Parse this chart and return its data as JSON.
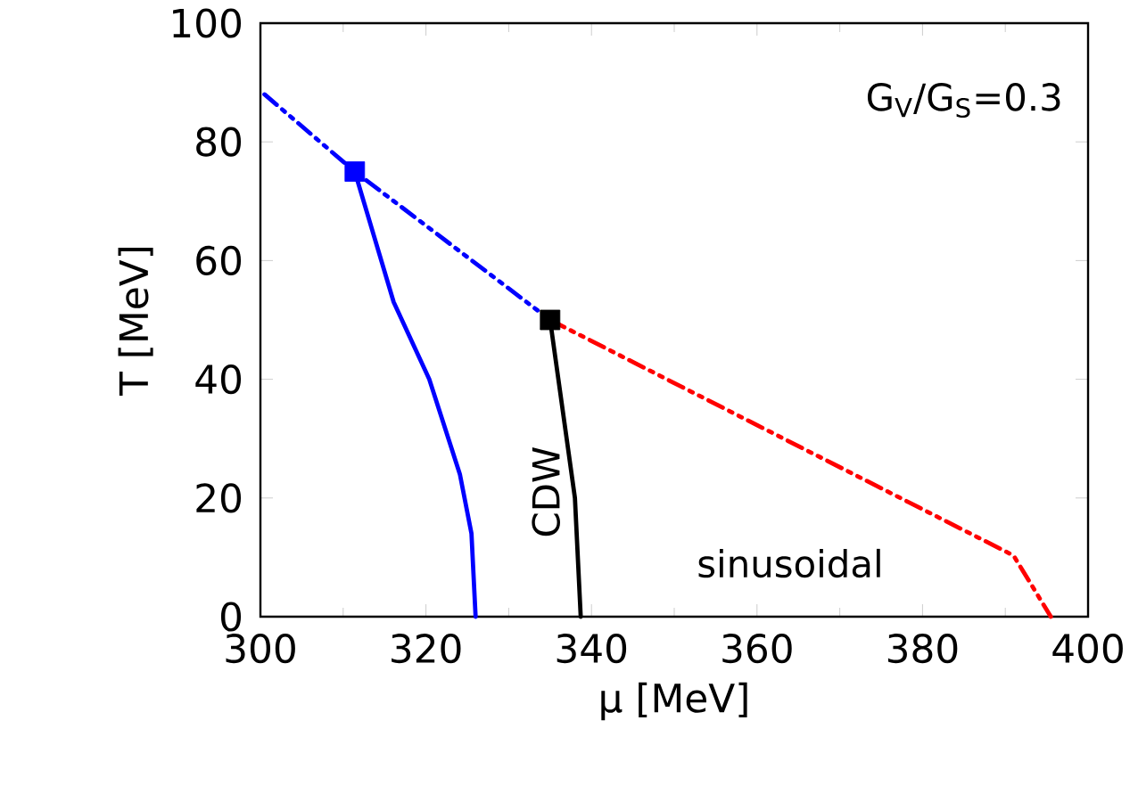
{
  "chart_data": {
    "type": "line",
    "xlabel": "μ [MeV]",
    "ylabel": "T [MeV]",
    "xlim": [
      300,
      400
    ],
    "ylim": [
      0,
      100
    ],
    "xticks": [
      300,
      320,
      340,
      360,
      380,
      400
    ],
    "yticks": [
      0,
      20,
      40,
      60,
      80,
      100
    ],
    "grid": false,
    "annotations": [
      "G$_{V}$/G$_{S}$=0.3",
      "CDW",
      "sinusoidal"
    ],
    "series": [
      {
        "color": "#0000ff",
        "line_style": "dashed",
        "x": [
          300.5,
          311.4,
          335
        ],
        "values": [
          88,
          75,
          50
        ]
      },
      {
        "color": "#0000ff",
        "line_style": "solid",
        "x": [
          311.4,
          316.1,
          320.4,
          324.1,
          325.5,
          326
        ],
        "values": [
          75,
          53,
          40,
          24,
          14,
          0
        ]
      },
      {
        "color": "#000000",
        "line_style": "solid",
        "x": [
          335,
          338,
          338.7
        ],
        "values": [
          50,
          20,
          0
        ]
      },
      {
        "color": "#ff0000",
        "line_style": "dashed",
        "x": [
          335,
          391,
          395.5
        ],
        "values": [
          50,
          10.3,
          0
        ]
      },
      {
        "type": "scatter",
        "color": "#0000ff",
        "marker": "square",
        "x": [
          311.4
        ],
        "values": [
          75
        ]
      },
      {
        "type": "scatter",
        "color": "#000000",
        "marker": "square",
        "x": [
          335
        ],
        "values": [
          50
        ]
      }
    ]
  }
}
